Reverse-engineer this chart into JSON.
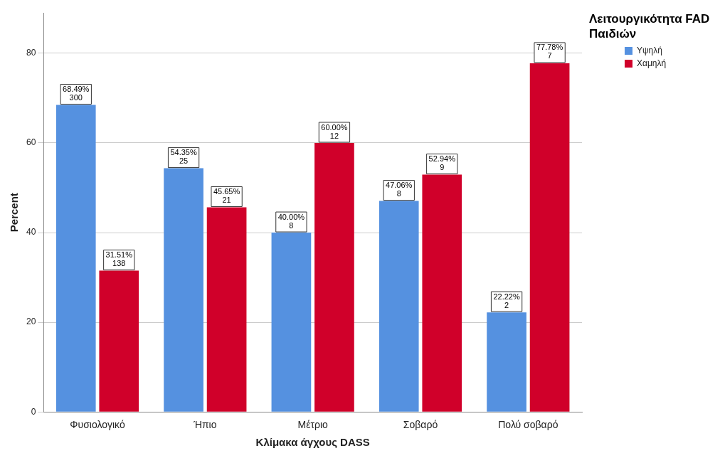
{
  "chart_data": {
    "type": "bar",
    "xlabel": "Κλίμακα άγχους DASS",
    "ylabel": "Percent",
    "legend_title": "Λειτουργικότητα FAD Παιδιών",
    "legend": "top right",
    "grid": "y",
    "categories": [
      "Φυσιολογικό",
      "Ήπιο",
      "Μέτριο",
      "Σοβαρό",
      "Πολύ σοβαρό"
    ],
    "ylim": [
      0,
      89
    ],
    "yticks": [
      0,
      20,
      40,
      60,
      80
    ],
    "series": [
      {
        "name": "Υψηλή",
        "color": "#5591e0",
        "values": [
          68.49,
          54.35,
          40.0,
          47.06,
          22.22
        ],
        "value_labels": [
          "68.49%\n300",
          "54.35%\n25",
          "40.00%\n8",
          "47.06%\n8",
          "22.22%\n2"
        ]
      },
      {
        "name": "Χαμηλή",
        "color": "#d0002a",
        "values": [
          31.51,
          45.65,
          60.0,
          52.94,
          77.78
        ],
        "value_labels": [
          "31.51%\n138",
          "45.65%\n21",
          "60.00%\n12",
          "52.94%\n9",
          "77.78%\n7"
        ]
      }
    ]
  }
}
